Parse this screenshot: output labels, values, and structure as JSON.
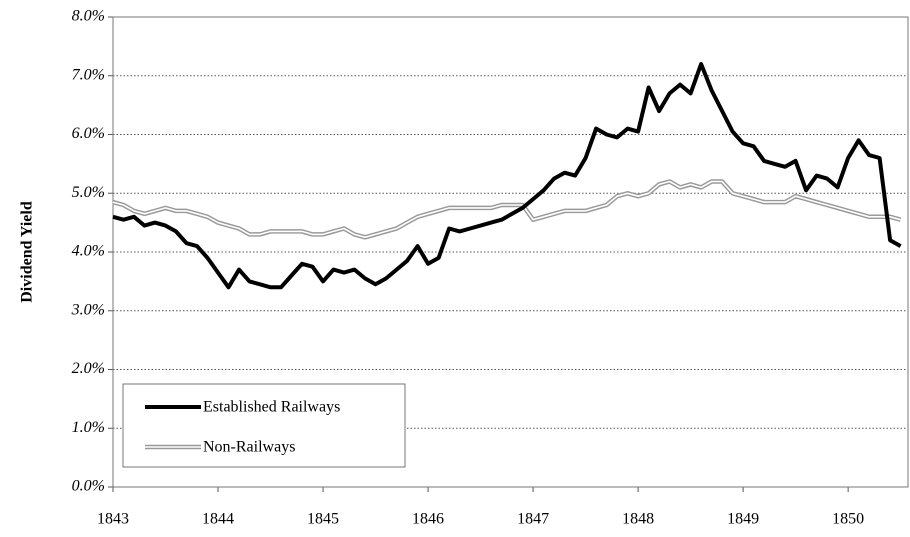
{
  "chart_data": {
    "type": "line",
    "y_label": "Dividend Yield",
    "x": [
      1843,
      1843.1,
      1843.2,
      1843.3,
      1843.4,
      1843.5,
      1843.6,
      1843.7,
      1843.8,
      1843.9,
      1844,
      1844.1,
      1844.2,
      1844.3,
      1844.4,
      1844.5,
      1844.6,
      1844.7,
      1844.8,
      1844.9,
      1845,
      1845.1,
      1845.2,
      1845.3,
      1845.4,
      1845.5,
      1845.6,
      1845.7,
      1845.8,
      1845.9,
      1846,
      1846.1,
      1846.2,
      1846.3,
      1846.4,
      1846.5,
      1846.6,
      1846.7,
      1846.8,
      1846.9,
      1847,
      1847.1,
      1847.2,
      1847.3,
      1847.4,
      1847.5,
      1847.6,
      1847.7,
      1847.8,
      1847.9,
      1848,
      1848.1,
      1848.2,
      1848.3,
      1848.4,
      1848.5,
      1848.6,
      1848.7,
      1848.8,
      1848.9,
      1849,
      1849.1,
      1849.2,
      1849.3,
      1849.4,
      1849.5,
      1849.6,
      1849.7,
      1849.8,
      1849.9,
      1850,
      1850.1,
      1850.2,
      1850.3,
      1850.4,
      1850.5
    ],
    "series": [
      {
        "name": "Established Railways",
        "color": "#000000",
        "style": "solid",
        "values": [
          4.6,
          4.55,
          4.6,
          4.45,
          4.5,
          4.45,
          4.35,
          4.15,
          4.1,
          3.9,
          3.65,
          3.4,
          3.7,
          3.5,
          3.45,
          3.4,
          3.4,
          3.6,
          3.8,
          3.75,
          3.5,
          3.7,
          3.65,
          3.7,
          3.55,
          3.45,
          3.55,
          3.7,
          3.85,
          4.1,
          3.8,
          3.9,
          4.4,
          4.35,
          4.4,
          4.45,
          4.5,
          4.55,
          4.65,
          4.75,
          4.9,
          5.05,
          5.25,
          5.35,
          5.3,
          5.6,
          6.1,
          6.0,
          5.95,
          6.1,
          6.05,
          6.8,
          6.4,
          6.7,
          6.85,
          6.7,
          7.2,
          6.75,
          6.4,
          6.05,
          5.85,
          5.8,
          5.55,
          5.5,
          5.45,
          5.55,
          5.05,
          5.3,
          5.25,
          5.1,
          5.6,
          5.9,
          5.65,
          5.6,
          4.2,
          4.1
        ]
      },
      {
        "name": "Non-Railways",
        "color": "#999999",
        "style": "double",
        "values": [
          4.85,
          4.8,
          4.7,
          4.65,
          4.7,
          4.75,
          4.7,
          4.7,
          4.65,
          4.6,
          4.5,
          4.45,
          4.4,
          4.3,
          4.3,
          4.35,
          4.35,
          4.35,
          4.35,
          4.3,
          4.3,
          4.35,
          4.4,
          4.3,
          4.25,
          4.3,
          4.35,
          4.4,
          4.5,
          4.6,
          4.65,
          4.7,
          4.75,
          4.75,
          4.75,
          4.75,
          4.75,
          4.8,
          4.8,
          4.8,
          4.55,
          4.6,
          4.65,
          4.7,
          4.7,
          4.7,
          4.75,
          4.8,
          4.95,
          5.0,
          4.95,
          5.0,
          5.15,
          5.2,
          5.1,
          5.15,
          5.1,
          5.2,
          5.2,
          5.0,
          4.95,
          4.9,
          4.85,
          4.85,
          4.85,
          4.95,
          4.9,
          4.85,
          4.8,
          4.75,
          4.7,
          4.65,
          4.6,
          4.6,
          4.6,
          4.55
        ]
      }
    ],
    "xlim": [
      1843,
      1850.57
    ],
    "xticks": [
      1843,
      1844,
      1845,
      1846,
      1847,
      1848,
      1849,
      1850
    ],
    "ylim": [
      0,
      8
    ],
    "yticks": [
      {
        "value": 0,
        "label": "0.0%"
      },
      {
        "value": 1,
        "label": "1.0%"
      },
      {
        "value": 2,
        "label": "2.0%"
      },
      {
        "value": 3,
        "label": "3.0%"
      },
      {
        "value": 4,
        "label": "4.0%"
      },
      {
        "value": 5,
        "label": "5.0%"
      },
      {
        "value": 6,
        "label": "6.0%"
      },
      {
        "value": 7,
        "label": "7.0%"
      },
      {
        "value": 8,
        "label": "8.0%"
      }
    ],
    "grid": true,
    "legend": "lower left"
  }
}
